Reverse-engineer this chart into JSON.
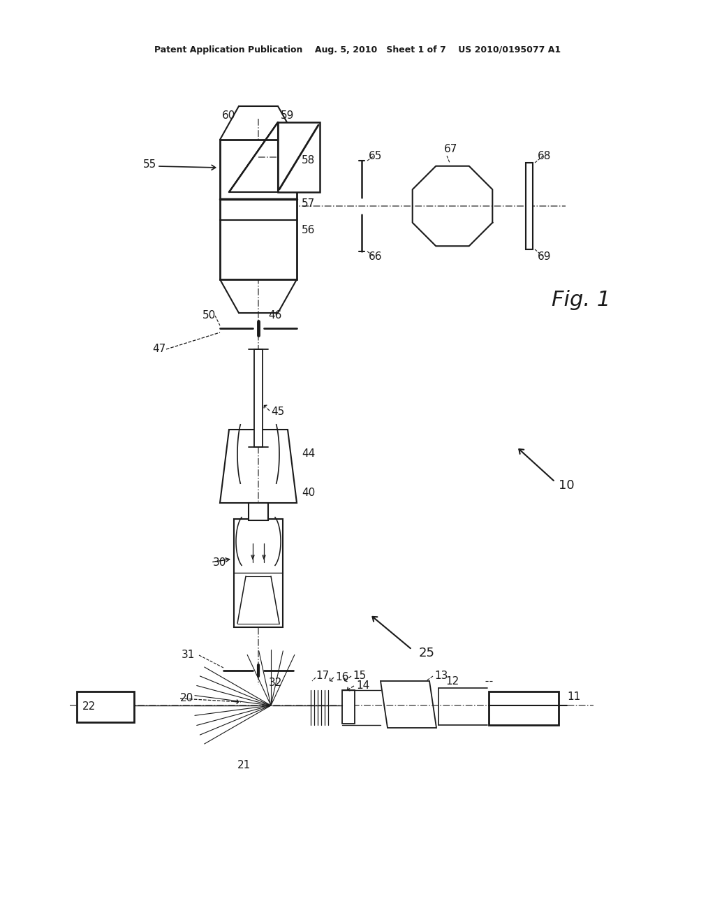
{
  "background": "#ffffff",
  "lc": "#1a1a1a",
  "ac": "#555555",
  "header": "Patent Application Publication    Aug. 5, 2010   Sheet 1 of 7    US 2010/0195077 A1",
  "fig_label": "Fig. 1",
  "vax": 370,
  "hax": 1010
}
